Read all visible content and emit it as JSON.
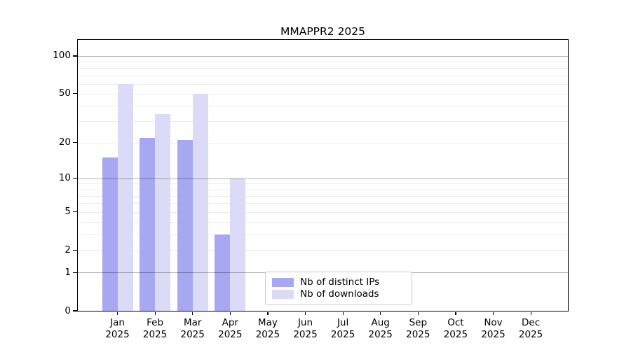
{
  "chart_data": {
    "type": "bar",
    "title": "MMAPPR2 2025",
    "categories": [
      "Jan",
      "Feb",
      "Mar",
      "Apr",
      "May",
      "Jun",
      "Jul",
      "Aug",
      "Sep",
      "Oct",
      "Nov",
      "Dec"
    ],
    "year": "2025",
    "series": [
      {
        "name": "Nb of distinct IPs",
        "color": "#a8a8f2",
        "values": [
          15,
          22,
          21,
          3,
          0,
          0,
          0,
          0,
          0,
          0,
          0,
          0
        ]
      },
      {
        "name": "Nb of downloads",
        "color": "#dbdbf8",
        "values": [
          60,
          34,
          50,
          10,
          0,
          0,
          0,
          0,
          0,
          0,
          0,
          0
        ]
      }
    ],
    "yticks": [
      100,
      50,
      20,
      10,
      5,
      2,
      1,
      0
    ],
    "yscale": "log10(1+y)",
    "ylim": [
      0,
      131
    ],
    "grid": {
      "major": [
        1,
        10,
        100
      ],
      "minor": [
        2,
        3,
        4,
        5,
        6,
        7,
        8,
        9,
        20,
        30,
        40,
        50,
        60,
        70,
        80,
        90
      ],
      "major_color": "rgba(0,0,0,0.30)",
      "minor_color": "rgba(0,0,0,0.08)"
    },
    "legend_position": "lower center",
    "axis_color": "#000000",
    "background_color": "#ffffff"
  }
}
